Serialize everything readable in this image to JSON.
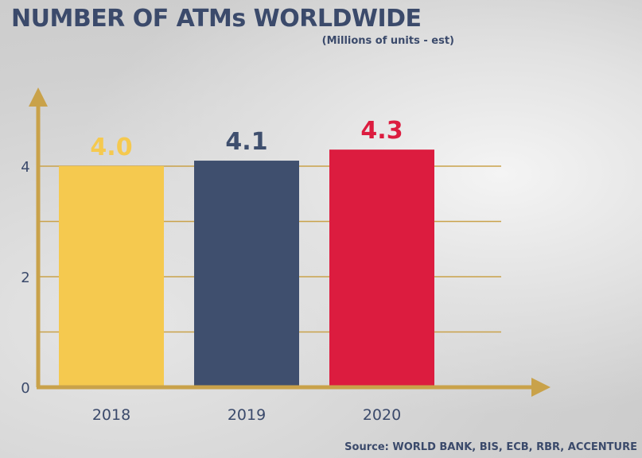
{
  "header": {
    "title": "NUMBER OF ATMs WORLDWIDE",
    "subtitle": "(Millions of units - est)"
  },
  "footer": {
    "source": "Source: WORLD BANK, BIS, ECB, RBR, ACCENTURE"
  },
  "colors": {
    "axis": "#c9a24a",
    "grid": "#c9a24a",
    "tick_text": "#3b4a6b"
  },
  "chart_data": {
    "type": "bar",
    "categories": [
      "2018",
      "2019",
      "2020"
    ],
    "values": [
      4.0,
      4.1,
      4.3
    ],
    "value_labels": [
      "4.0",
      "4.1",
      "4.3"
    ],
    "bar_colors": [
      "#f5c94f",
      "#3f4f6e",
      "#dc1c3f"
    ],
    "label_colors": [
      "#f5c94f",
      "#3f4f6e",
      "#dc1c3f"
    ],
    "y_ticks": [
      0,
      2,
      4
    ],
    "y_tick_labels": [
      "0",
      "2",
      "4"
    ],
    "ylim": [
      0,
      5.5
    ],
    "gridlines": [
      1,
      2,
      3,
      4
    ],
    "grid": true
  }
}
